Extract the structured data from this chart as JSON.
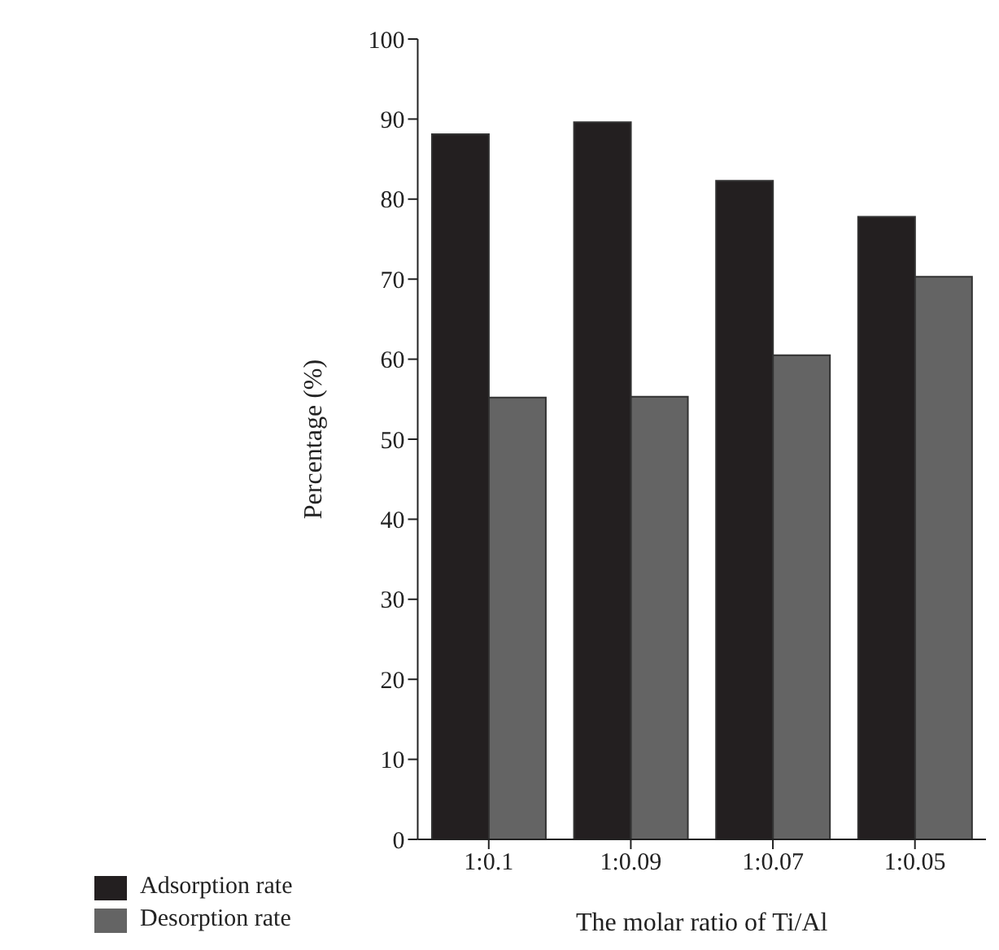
{
  "chart_data": {
    "type": "bar",
    "xlabel": "The molar ratio of Ti/Al",
    "ylabel": "Percentage (%)",
    "categories": [
      "1:0.1",
      "1:0.09",
      "1:0.07",
      "1:0.05"
    ],
    "series": [
      {
        "name": "Adsorption rate",
        "color": "#231f20",
        "values": [
          88.1,
          89.6,
          82.3,
          77.8
        ]
      },
      {
        "name": "Desorption rate",
        "color": "#646464",
        "values": [
          55.2,
          55.3,
          60.5,
          70.3
        ]
      }
    ],
    "ylim": [
      0,
      100
    ],
    "yticks": [
      0,
      10,
      20,
      30,
      40,
      50,
      60,
      70,
      80,
      90,
      100
    ],
    "grid": false,
    "legend": "bottom left"
  }
}
